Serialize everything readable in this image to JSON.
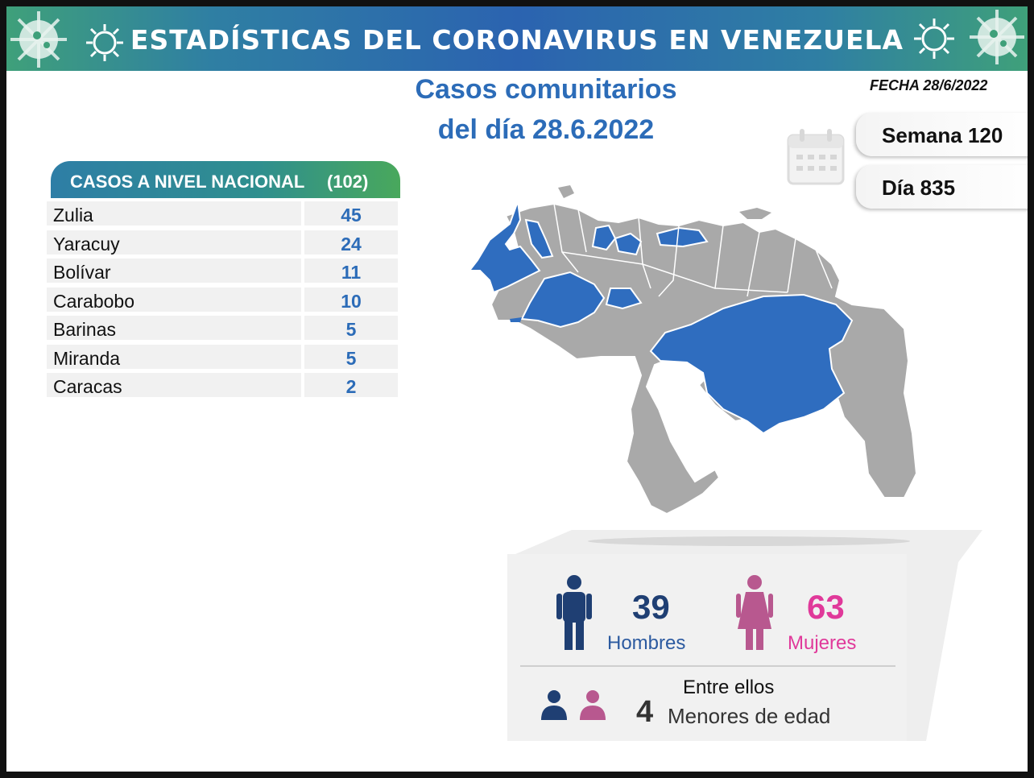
{
  "banner": {
    "title": "ESTADÍSTICAS DEL CORONAVIRUS EN VENEZUELA"
  },
  "header": {
    "title_line1": "Casos comunitarios",
    "title_line2": "del día 28.6.2022",
    "fecha": "FECHA 28/6/2022",
    "semana": "Semana 120",
    "dia": "Día 835"
  },
  "table": {
    "title": "CASOS A NIVEL NACIONAL",
    "total": "(102)",
    "rows": [
      {
        "name": "Zulia",
        "value": "45"
      },
      {
        "name": "Yaracuy",
        "value": "24"
      },
      {
        "name": "Bolívar",
        "value": "11"
      },
      {
        "name": "Carabobo",
        "value": "10"
      },
      {
        "name": "Barinas",
        "value": "5"
      },
      {
        "name": "Miranda",
        "value": "5"
      },
      {
        "name": "Caracas",
        "value": "2"
      }
    ]
  },
  "map": {
    "highlight_color": "#2f6dbf",
    "base_color": "#a9a9a9",
    "border_color": "#ffffff"
  },
  "stats": {
    "hombres_count": "39",
    "hombres_label": "Hombres",
    "mujeres_count": "63",
    "mujeres_label": "Mujeres",
    "entre_ellos": "Entre ellos",
    "menores_count": "4",
    "menores_label": "Menores de edad",
    "male_color": "#1f3f73",
    "female_color": "#b8588f"
  }
}
